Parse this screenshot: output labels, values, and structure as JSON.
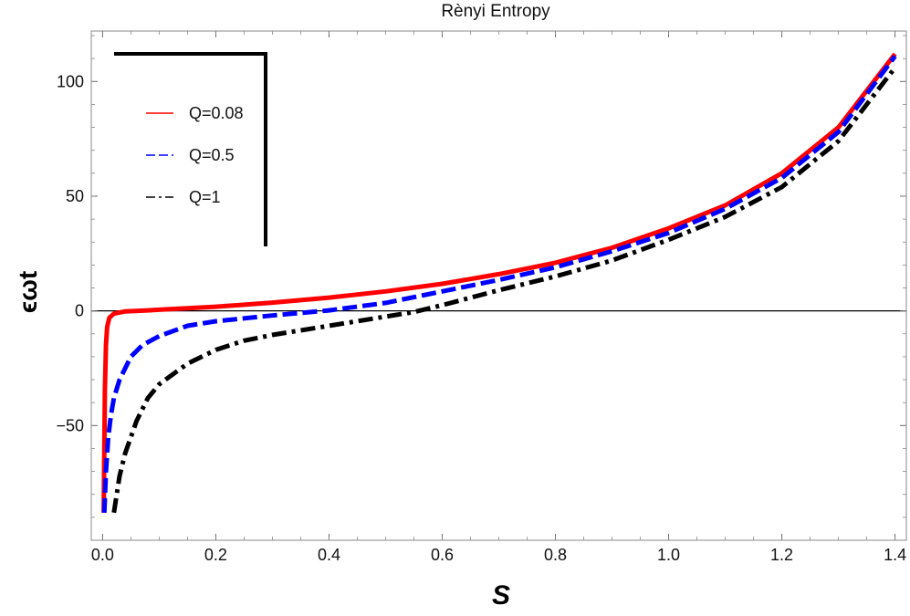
{
  "chart_data": {
    "type": "line",
    "title": "Rènyi Entropy",
    "xlabel": "S",
    "ylabel": "ϵωt",
    "xlim": [
      -0.02,
      1.42
    ],
    "ylim": [
      -100,
      122
    ],
    "x_ticks": [
      0.0,
      0.2,
      0.4,
      0.6,
      0.8,
      1.0,
      1.2,
      1.4
    ],
    "x_tick_labels": [
      "0.0",
      "0.2",
      "0.4",
      "0.6",
      "0.8",
      "1.0",
      "1.2",
      "1.4"
    ],
    "y_ticks": [
      -50,
      0,
      50,
      100
    ],
    "y_tick_labels": [
      "−50",
      "0",
      "50",
      "100"
    ],
    "zero_line": true,
    "grid": false,
    "legend_position": "top-left",
    "series": [
      {
        "name": "Q=0.08",
        "color": "#ff0000",
        "style": "solid",
        "points": [
          [
            0.002,
            -88
          ],
          [
            0.003,
            -60
          ],
          [
            0.004,
            -35
          ],
          [
            0.006,
            -15
          ],
          [
            0.008,
            -7
          ],
          [
            0.012,
            -3
          ],
          [
            0.02,
            -1.2
          ],
          [
            0.04,
            -0.2
          ],
          [
            0.08,
            0.2
          ],
          [
            0.1,
            0.5
          ],
          [
            0.2,
            1.8
          ],
          [
            0.3,
            3.6
          ],
          [
            0.4,
            5.8
          ],
          [
            0.5,
            8.5
          ],
          [
            0.6,
            11.8
          ],
          [
            0.7,
            16
          ],
          [
            0.8,
            21
          ],
          [
            0.9,
            27.5
          ],
          [
            1.0,
            36
          ],
          [
            1.1,
            46
          ],
          [
            1.2,
            60
          ],
          [
            1.3,
            80
          ],
          [
            1.4,
            112
          ]
        ]
      },
      {
        "name": "Q=0.5",
        "color": "#0000ff",
        "style": "dashed",
        "points": [
          [
            0.003,
            -88
          ],
          [
            0.006,
            -70
          ],
          [
            0.01,
            -55
          ],
          [
            0.015,
            -45
          ],
          [
            0.02,
            -38
          ],
          [
            0.03,
            -30
          ],
          [
            0.05,
            -20
          ],
          [
            0.07,
            -15
          ],
          [
            0.1,
            -11
          ],
          [
            0.15,
            -6.5
          ],
          [
            0.2,
            -4.5
          ],
          [
            0.3,
            -2
          ],
          [
            0.4,
            0.2
          ],
          [
            0.5,
            3.5
          ],
          [
            0.6,
            8.5
          ],
          [
            0.7,
            13.5
          ],
          [
            0.8,
            19
          ],
          [
            0.9,
            26
          ],
          [
            1.0,
            34
          ],
          [
            1.1,
            44.5
          ],
          [
            1.2,
            58
          ],
          [
            1.3,
            78
          ],
          [
            1.4,
            111
          ]
        ]
      },
      {
        "name": "Q=1",
        "color": "#000000",
        "style": "dashdot",
        "points": [
          [
            0.02,
            -88
          ],
          [
            0.03,
            -72
          ],
          [
            0.04,
            -62
          ],
          [
            0.05,
            -55
          ],
          [
            0.06,
            -48
          ],
          [
            0.08,
            -38
          ],
          [
            0.1,
            -32
          ],
          [
            0.15,
            -23
          ],
          [
            0.2,
            -17
          ],
          [
            0.25,
            -13
          ],
          [
            0.3,
            -10.5
          ],
          [
            0.4,
            -6.5
          ],
          [
            0.5,
            -2.5
          ],
          [
            0.55,
            -0.5
          ],
          [
            0.6,
            2.5
          ],
          [
            0.7,
            9
          ],
          [
            0.8,
            15
          ],
          [
            0.9,
            22
          ],
          [
            1.0,
            31
          ],
          [
            1.1,
            41
          ],
          [
            1.2,
            54
          ],
          [
            1.3,
            74
          ],
          [
            1.4,
            106
          ]
        ]
      }
    ]
  }
}
